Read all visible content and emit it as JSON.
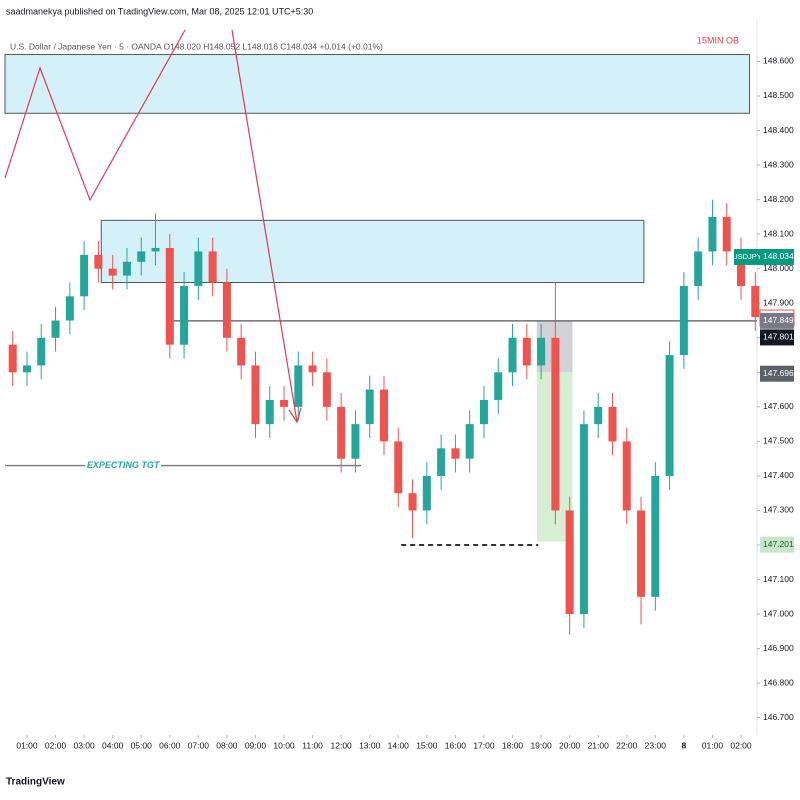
{
  "header": {
    "publisher": "saadmanekya published on TradingView.com, Mar 08, 2025 12:01 UTC+5:30",
    "legend": "U.S. Dollar / Japanese Yen · 5 · OANDA  O148.020  H148.052  L148.016  C148.034  +0.014 (+0.01%)"
  },
  "chart_data": {
    "type": "candlestick",
    "annotation": "15MIN OB",
    "symbol": "USDJPY",
    "up_color": "#26a69a",
    "down_color": "#ef5350",
    "x": [
      0.5,
      1,
      1.5,
      2,
      2.5,
      3,
      3.5,
      4,
      4.5,
      5,
      5.5,
      6,
      6.5,
      7,
      7.5,
      8,
      8.5,
      9,
      9.5,
      10,
      10.5,
      11,
      11.5,
      12,
      12.5,
      13,
      13.5,
      14,
      14.5,
      15,
      15.5,
      16,
      16.5,
      17,
      17.5,
      18,
      18.5,
      19,
      19.5,
      20,
      20.5,
      21,
      21.5,
      22,
      22.5,
      23,
      23.5,
      24,
      24.5,
      25,
      25.5,
      26,
      26.5
    ],
    "open": [
      147.78,
      147.7,
      147.72,
      147.8,
      147.85,
      147.92,
      148.04,
      148.0,
      147.98,
      148.02,
      148.05,
      148.06,
      147.78,
      147.95,
      148.05,
      147.96,
      147.8,
      147.72,
      147.55,
      147.62,
      147.6,
      147.72,
      147.7,
      147.6,
      147.45,
      147.55,
      147.65,
      147.5,
      147.35,
      147.3,
      147.4,
      147.48,
      147.45,
      147.55,
      147.62,
      147.7,
      147.8,
      147.72,
      147.8,
      147.3,
      147.0,
      147.55,
      147.6,
      147.5,
      147.3,
      147.05,
      147.4,
      147.75,
      147.95,
      148.05,
      148.15,
      148.05,
      147.95
    ],
    "high": [
      147.82,
      147.76,
      147.84,
      147.89,
      147.96,
      148.08,
      148.08,
      148.04,
      148.06,
      148.09,
      148.16,
      148.1,
      147.99,
      148.09,
      148.09,
      148.0,
      147.84,
      147.76,
      147.66,
      147.66,
      147.76,
      147.76,
      147.74,
      147.64,
      147.59,
      147.69,
      147.69,
      147.54,
      147.39,
      147.44,
      147.52,
      147.52,
      147.59,
      147.66,
      147.74,
      147.84,
      147.84,
      147.84,
      147.96,
      147.34,
      147.59,
      147.64,
      147.64,
      147.54,
      147.34,
      147.44,
      147.79,
      147.99,
      148.09,
      148.2,
      148.19,
      148.09,
      147.99
    ],
    "low": [
      147.66,
      147.66,
      147.68,
      147.76,
      147.81,
      147.88,
      147.96,
      147.94,
      147.94,
      147.98,
      148.01,
      147.74,
      147.74,
      147.91,
      147.92,
      147.76,
      147.68,
      147.51,
      147.51,
      147.56,
      147.56,
      147.66,
      147.56,
      147.41,
      147.41,
      147.51,
      147.46,
      147.31,
      147.22,
      147.26,
      147.36,
      147.41,
      147.41,
      147.51,
      147.58,
      147.66,
      147.68,
      147.68,
      147.26,
      146.94,
      146.96,
      147.51,
      147.46,
      147.26,
      146.97,
      147.01,
      147.36,
      147.71,
      147.91,
      148.01,
      148.01,
      147.91,
      147.82
    ],
    "close": [
      147.7,
      147.72,
      147.8,
      147.85,
      147.92,
      148.04,
      148.0,
      147.98,
      148.02,
      148.05,
      148.06,
      147.78,
      147.95,
      148.05,
      147.96,
      147.8,
      147.72,
      147.55,
      147.62,
      147.6,
      147.72,
      147.7,
      147.6,
      147.45,
      147.55,
      147.65,
      147.5,
      147.35,
      147.3,
      147.4,
      147.48,
      147.45,
      147.55,
      147.62,
      147.7,
      147.8,
      147.72,
      147.8,
      147.3,
      147.0,
      147.55,
      147.6,
      147.5,
      147.3,
      147.05,
      147.4,
      147.75,
      147.95,
      148.05,
      148.15,
      148.05,
      147.95,
      147.86
    ],
    "xlim": [
      0.23,
      26.56
    ],
    "ylim": [
      146.65,
      148.72
    ],
    "xticks": [
      {
        "value": 1,
        "label": "01:00"
      },
      {
        "value": 2,
        "label": "02:00"
      },
      {
        "value": 3,
        "label": "03:00"
      },
      {
        "value": 4,
        "label": "04:00"
      },
      {
        "value": 5,
        "label": "05:00"
      },
      {
        "value": 6,
        "label": "06:00"
      },
      {
        "value": 7,
        "label": "07:00"
      },
      {
        "value": 8,
        "label": "08:00"
      },
      {
        "value": 9,
        "label": "09:00"
      },
      {
        "value": 10,
        "label": "10:00"
      },
      {
        "value": 11,
        "label": "11:00"
      },
      {
        "value": 12,
        "label": "12:00"
      },
      {
        "value": 13,
        "label": "13:00"
      },
      {
        "value": 14,
        "label": "14:00"
      },
      {
        "value": 15,
        "label": "15:00"
      },
      {
        "value": 16,
        "label": "16:00"
      },
      {
        "value": 17,
        "label": "17:00"
      },
      {
        "value": 18,
        "label": "18:00"
      },
      {
        "value": 19,
        "label": "19:00"
      },
      {
        "value": 20,
        "label": "20:00"
      },
      {
        "value": 21,
        "label": "21:00"
      },
      {
        "value": 22,
        "label": "22:00"
      },
      {
        "value": 23,
        "label": "23:00"
      },
      {
        "value": 24,
        "label": "8"
      },
      {
        "value": 25,
        "label": "01:00"
      },
      {
        "value": 26,
        "label": "02:00"
      }
    ],
    "yticks": [
      {
        "value": 146.7,
        "label": "146.700"
      },
      {
        "value": 146.8,
        "label": "146.800"
      },
      {
        "value": 146.9,
        "label": "146.900"
      },
      {
        "value": 147,
        "label": "147.000"
      },
      {
        "value": 147.1,
        "label": "147.100"
      },
      {
        "value": 147.2,
        "label": "147.200"
      },
      {
        "value": 147.3,
        "label": "147.300"
      },
      {
        "value": 147.4,
        "label": "147.400"
      },
      {
        "value": 147.5,
        "label": "147.500"
      },
      {
        "value": 147.6,
        "label": "147.600"
      },
      {
        "value": 147.7,
        "label": "147.700"
      },
      {
        "value": 147.8,
        "label": "147.800"
      },
      {
        "value": 147.9,
        "label": "147.900"
      },
      {
        "value": 148,
        "label": "148.000"
      },
      {
        "value": 148.1,
        "label": "148.100"
      },
      {
        "value": 148.2,
        "label": "148.200"
      },
      {
        "value": 148.3,
        "label": "148.300"
      },
      {
        "value": 148.4,
        "label": "148.400"
      },
      {
        "value": 148.5,
        "label": "148.500"
      },
      {
        "value": 148.6,
        "label": "148.600"
      }
    ],
    "zones": [
      {
        "y": [
          148.45,
          148.62
        ],
        "x": [
          0.23,
          26.3
        ],
        "color": "#d4f1f9"
      },
      {
        "y": [
          147.96,
          148.14
        ],
        "x": [
          3.6,
          22.6
        ],
        "color": "#d4f1f9"
      },
      {
        "y": [
          147.7,
          147.85
        ],
        "x": [
          18.85,
          20.1
        ],
        "color": "#d1d1d6"
      },
      {
        "y": [
          147.21,
          147.7
        ],
        "x": [
          18.85,
          20.1
        ],
        "color": "#d6efd2"
      }
    ],
    "lines": [
      {
        "value": 147.849,
        "x": [
          6,
          26.56
        ],
        "color": "#555"
      },
      {
        "value": 147.43,
        "x": [
          0.23,
          12.7
        ],
        "color": "#777",
        "label": "EXPECTING TGT"
      },
      {
        "value": 147.2,
        "x": [
          14.1,
          18.9
        ],
        "color": "#333",
        "dash": true
      }
    ],
    "price_labels": [
      {
        "value": 148.034,
        "color": "#089981"
      },
      {
        "value": 147.857,
        "color": "#ffffff"
      },
      {
        "value": 147.849,
        "color": "#787b86"
      },
      {
        "value": 147.801,
        "color": "#131722"
      },
      {
        "value": 147.696,
        "color": "#5d606b"
      },
      {
        "value": 147.201,
        "color": "#c8e6c9"
      }
    ]
  },
  "footer": {
    "brand": "TradingView"
  }
}
